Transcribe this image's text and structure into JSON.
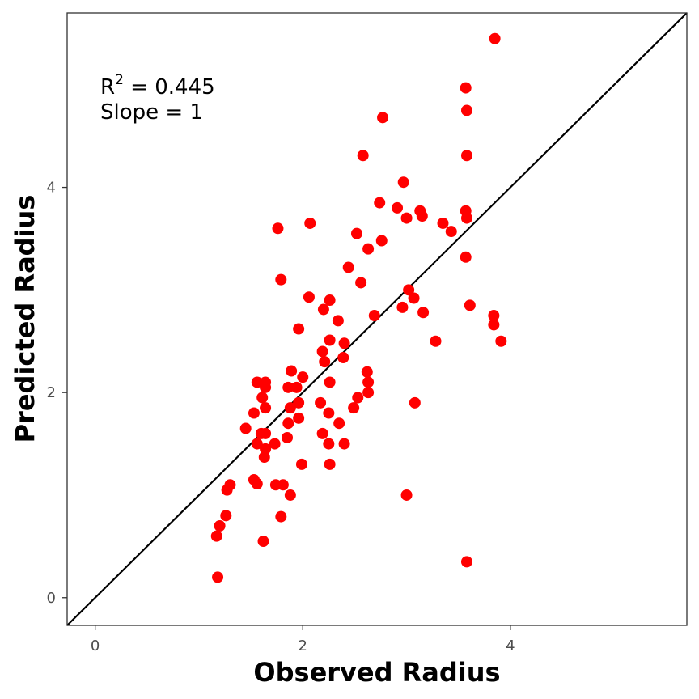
{
  "chart_data": {
    "type": "scatter",
    "title": "",
    "xlabel": "Observed Radius",
    "ylabel": "Predicted Radius",
    "xlim": [
      -0.27,
      5.7
    ],
    "ylim": [
      -0.27,
      5.7
    ],
    "x_ticks": [
      "0",
      "2",
      "4"
    ],
    "y_ticks": [
      "0",
      "2",
      "4"
    ],
    "grid": false,
    "legend": "none",
    "reference_line": "y = x",
    "annotation": {
      "r2_label": "R",
      "r2_sup": "2",
      "r2_value": " = 0.445",
      "slope": "Slope = 1"
    },
    "colors": {
      "points": "#ff0000",
      "line": "#000000",
      "frame": "#333333"
    },
    "points": [
      [
        3.85,
        5.45
      ],
      [
        3.57,
        4.97
      ],
      [
        3.58,
        4.75
      ],
      [
        2.77,
        4.68
      ],
      [
        2.58,
        4.31
      ],
      [
        3.58,
        4.31
      ],
      [
        2.97,
        4.05
      ],
      [
        2.74,
        3.85
      ],
      [
        2.91,
        3.8
      ],
      [
        3.57,
        3.77
      ],
      [
        3.13,
        3.77
      ],
      [
        3.15,
        3.72
      ],
      [
        3.0,
        3.7
      ],
      [
        3.58,
        3.7
      ],
      [
        2.07,
        3.65
      ],
      [
        3.35,
        3.65
      ],
      [
        1.76,
        3.6
      ],
      [
        3.43,
        3.57
      ],
      [
        2.52,
        3.55
      ],
      [
        2.76,
        3.48
      ],
      [
        2.63,
        3.4
      ],
      [
        3.57,
        3.32
      ],
      [
        2.44,
        3.22
      ],
      [
        1.79,
        3.1
      ],
      [
        2.56,
        3.07
      ],
      [
        3.02,
        3.0
      ],
      [
        2.06,
        2.93
      ],
      [
        3.07,
        2.92
      ],
      [
        2.26,
        2.9
      ],
      [
        3.61,
        2.85
      ],
      [
        2.96,
        2.83
      ],
      [
        2.2,
        2.81
      ],
      [
        3.16,
        2.78
      ],
      [
        2.69,
        2.75
      ],
      [
        3.84,
        2.75
      ],
      [
        2.34,
        2.7
      ],
      [
        3.84,
        2.66
      ],
      [
        1.96,
        2.62
      ],
      [
        2.26,
        2.51
      ],
      [
        3.28,
        2.5
      ],
      [
        3.91,
        2.5
      ],
      [
        2.4,
        2.48
      ],
      [
        2.19,
        2.4
      ],
      [
        2.39,
        2.34
      ],
      [
        2.21,
        2.3
      ],
      [
        1.89,
        2.21
      ],
      [
        2.62,
        2.2
      ],
      [
        2.0,
        2.15
      ],
      [
        1.56,
        2.1
      ],
      [
        1.64,
        2.1
      ],
      [
        2.26,
        2.1
      ],
      [
        2.63,
        2.1
      ],
      [
        1.64,
        2.05
      ],
      [
        1.86,
        2.05
      ],
      [
        1.94,
        2.05
      ],
      [
        2.63,
        2.0
      ],
      [
        1.61,
        1.95
      ],
      [
        2.53,
        1.95
      ],
      [
        1.96,
        1.9
      ],
      [
        2.17,
        1.9
      ],
      [
        3.08,
        1.9
      ],
      [
        1.64,
        1.85
      ],
      [
        1.88,
        1.85
      ],
      [
        2.49,
        1.85
      ],
      [
        1.53,
        1.8
      ],
      [
        2.25,
        1.8
      ],
      [
        1.96,
        1.75
      ],
      [
        1.86,
        1.7
      ],
      [
        2.35,
        1.7
      ],
      [
        1.45,
        1.65
      ],
      [
        1.6,
        1.6
      ],
      [
        1.64,
        1.6
      ],
      [
        2.19,
        1.6
      ],
      [
        1.85,
        1.56
      ],
      [
        1.56,
        1.5
      ],
      [
        1.73,
        1.5
      ],
      [
        2.25,
        1.5
      ],
      [
        2.4,
        1.5
      ],
      [
        1.64,
        1.45
      ],
      [
        1.63,
        1.37
      ],
      [
        1.99,
        1.3
      ],
      [
        2.26,
        1.3
      ],
      [
        1.53,
        1.15
      ],
      [
        1.56,
        1.11
      ],
      [
        1.3,
        1.1
      ],
      [
        1.74,
        1.1
      ],
      [
        1.81,
        1.1
      ],
      [
        1.27,
        1.05
      ],
      [
        1.88,
        1.0
      ],
      [
        3.0,
        1.0
      ],
      [
        1.26,
        0.8
      ],
      [
        1.79,
        0.79
      ],
      [
        1.2,
        0.7
      ],
      [
        1.17,
        0.6
      ],
      [
        1.62,
        0.55
      ],
      [
        3.58,
        0.35
      ],
      [
        1.18,
        0.2
      ]
    ]
  }
}
